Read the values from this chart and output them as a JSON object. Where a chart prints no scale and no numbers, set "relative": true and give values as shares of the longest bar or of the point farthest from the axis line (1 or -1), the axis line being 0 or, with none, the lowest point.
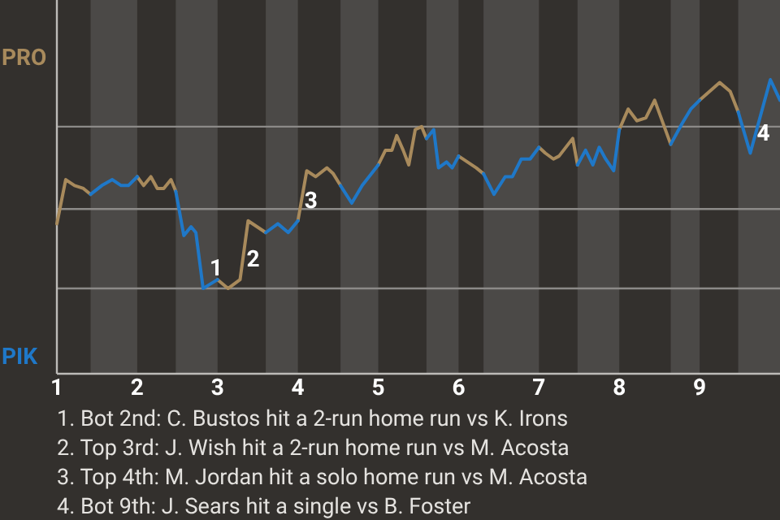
{
  "chart_data": {
    "type": "line",
    "relative": true,
    "x": [
      1,
      1.11,
      1.22,
      1.33,
      1.42,
      1.56,
      1.69,
      1.8,
      1.89,
      2,
      2.08,
      2.17,
      2.25,
      2.33,
      2.42,
      2.48,
      2.58,
      2.67,
      2.73,
      2.82,
      2.88,
      3,
      3.13,
      3.28,
      3.38,
      3.6,
      3.75,
      3.88,
      4,
      4.11,
      4.22,
      4.36,
      4.44,
      4.53,
      4.67,
      4.8,
      5,
      5.09,
      5.17,
      5.23,
      5.31,
      5.38,
      5.46,
      5.54,
      5.6,
      5.69,
      5.75,
      5.85,
      5.92,
      6,
      6.11,
      6.22,
      6.31,
      6.44,
      6.58,
      6.67,
      6.78,
      6.89,
      7,
      7.08,
      7.18,
      7.25,
      7.42,
      7.48,
      7.58,
      7.67,
      7.75,
      7.83,
      7.93,
      8,
      8.11,
      8.22,
      8.33,
      8.44,
      8.64,
      8.78,
      8.89,
      9,
      9.25,
      9.38,
      9.48,
      9.63,
      9.75,
      9.88,
      10
    ],
    "xlim": [
      1,
      10
    ],
    "xticks": [
      1,
      2,
      3,
      4,
      5,
      6,
      7,
      8,
      9
    ],
    "series": [
      {
        "name": "PRO",
        "color": "#a88a5c",
        "values": [
          0.51,
          0.66,
          0.64,
          0.63,
          0.61,
          null,
          null,
          null,
          null,
          0.67,
          0.64,
          0.67,
          0.63,
          0.63,
          0.66,
          0.62,
          null,
          null,
          null,
          null,
          null,
          0.32,
          0.29,
          0.32,
          0.52,
          0.48,
          null,
          null,
          0.52,
          0.69,
          0.67,
          0.7,
          0.68,
          0.64,
          null,
          null,
          0.71,
          0.76,
          0.76,
          0.81,
          0.76,
          0.71,
          0.83,
          0.84,
          0.8,
          null,
          null,
          null,
          null,
          0.74,
          0.72,
          0.7,
          0.68,
          null,
          null,
          null,
          null,
          null,
          0.77,
          0.75,
          0.73,
          0.74,
          0.8,
          0.71,
          null,
          null,
          null,
          null,
          null,
          0.83,
          0.9,
          0.86,
          0.87,
          0.93,
          0.78,
          null,
          null,
          0.93,
          0.99,
          0.96,
          0.89,
          null,
          null,
          null,
          null
        ]
      },
      {
        "name": "PIK",
        "color": "#1f78c8",
        "values": [
          null,
          null,
          null,
          null,
          0.61,
          0.64,
          0.66,
          0.64,
          0.64,
          0.67,
          null,
          null,
          null,
          null,
          null,
          0.62,
          0.47,
          0.5,
          0.48,
          0.29,
          0.3,
          0.32,
          null,
          null,
          null,
          0.48,
          0.51,
          0.48,
          0.52,
          null,
          null,
          null,
          null,
          0.64,
          0.58,
          0.64,
          0.71,
          null,
          null,
          null,
          null,
          null,
          null,
          null,
          0.8,
          0.83,
          0.7,
          0.72,
          0.7,
          0.74,
          null,
          null,
          0.68,
          0.61,
          0.67,
          0.67,
          0.73,
          0.73,
          0.77,
          null,
          null,
          null,
          null,
          0.71,
          0.76,
          0.71,
          0.77,
          0.73,
          0.69,
          0.83,
          null,
          null,
          null,
          null,
          0.78,
          0.85,
          0.9,
          0.93,
          null,
          null,
          0.89,
          0.75,
          0.87,
          1,
          0.93
        ]
      }
    ],
    "bands": [
      {
        "axis": "x",
        "from": 1.42,
        "to": 2,
        "color": "#4b4947"
      },
      {
        "axis": "x",
        "from": 2.48,
        "to": 3,
        "color": "#4b4947"
      },
      {
        "axis": "x",
        "from": 3.6,
        "to": 4,
        "color": "#4b4947"
      },
      {
        "axis": "x",
        "from": 4.53,
        "to": 5,
        "color": "#4b4947"
      },
      {
        "axis": "x",
        "from": 5.6,
        "to": 6,
        "color": "#4b4947"
      },
      {
        "axis": "x",
        "from": 6.31,
        "to": 7,
        "color": "#4b4947"
      },
      {
        "axis": "x",
        "from": 7.48,
        "to": 8,
        "color": "#4b4947"
      },
      {
        "axis": "x",
        "from": 8.64,
        "to": 9,
        "color": "#4b4947"
      },
      {
        "axis": "x",
        "from": 9.48,
        "to": 10,
        "color": "#4b4947"
      }
    ],
    "ref_lines": [
      {
        "axis": "y",
        "value": 0.29,
        "color": "#8c8a88"
      },
      {
        "axis": "y",
        "value": 0.56,
        "color": "#8c8a88"
      },
      {
        "axis": "y",
        "value": 0.84,
        "color": "#8c8a88"
      }
    ],
    "legend": "left",
    "annotations": [
      {
        "text": "1",
        "x": 2.82,
        "y": 0.29
      },
      {
        "text": "2",
        "x": 3.28,
        "y": 0.32
      },
      {
        "text": "3",
        "x": 4,
        "y": 0.52
      },
      {
        "text": "4",
        "x": 9.63,
        "y": 0.75
      },
      "1. Bot 2nd: C. Bustos hit a 2-run home run vs K. Irons",
      "2. Top 3rd: J. Wish hit a 2-run home run vs M. Acosta",
      "3. Top 4th: M. Jordan hit a solo home run vs M. Acosta",
      "4. Bot 9th: J. Sears hit a single vs B. Foster"
    ]
  }
}
